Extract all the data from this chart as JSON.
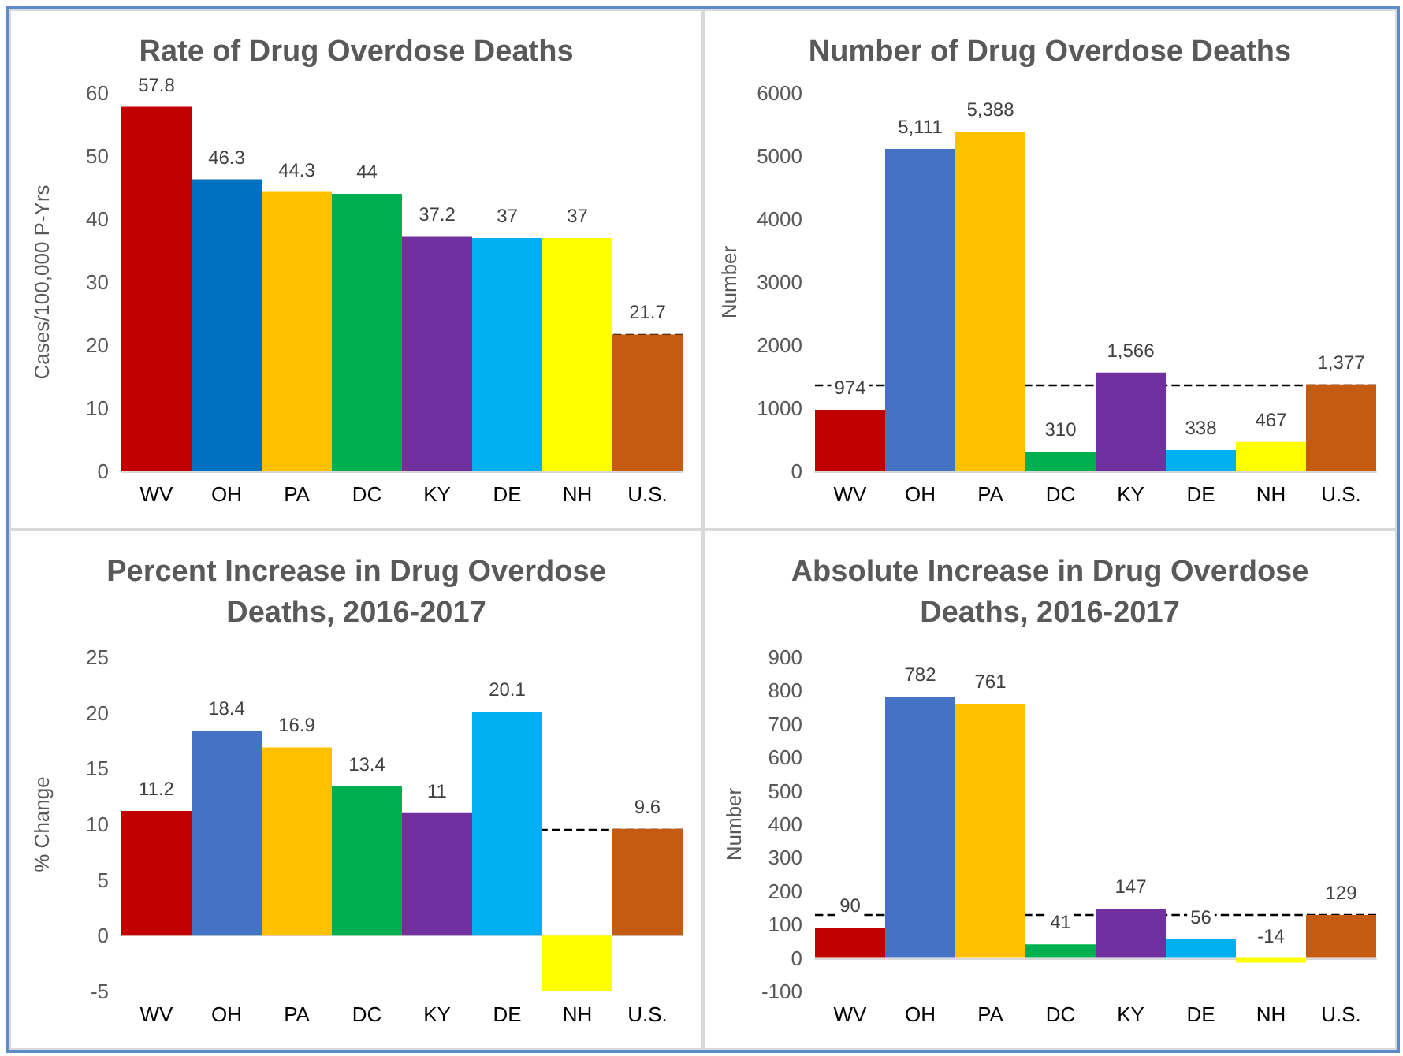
{
  "chart_data": [
    {
      "type": "bar",
      "title": "Rate of Drug Overdose Deaths",
      "ylabel": "Cases/100,000 P-Yrs",
      "categories": [
        "WV",
        "OH",
        "PA",
        "DC",
        "KY",
        "DE",
        "NH",
        "U.S."
      ],
      "values": [
        57.8,
        46.3,
        44.3,
        44,
        37.2,
        37,
        37,
        21.7
      ],
      "colors": [
        "#c00000",
        "#0070c0",
        "#ffc000",
        "#00b050",
        "#7030a0",
        "#00b0f0",
        "#ffff00",
        "#c55a11"
      ],
      "value_labels": [
        "57.8",
        "46.3",
        "44.3",
        "44",
        "37.2",
        "37",
        "37",
        "21.7"
      ],
      "ylim": [
        0,
        60
      ],
      "yticks": [
        0,
        10,
        20,
        30,
        40,
        50,
        60
      ],
      "grid": false,
      "ref_lines": [
        {
          "axis": "y",
          "value": 21.7,
          "color": "#000000",
          "line_style": "dashed"
        }
      ]
    },
    {
      "type": "bar",
      "title": "Number of Drug Overdose Deaths",
      "ylabel": "Number",
      "categories": [
        "WV",
        "OH",
        "PA",
        "DC",
        "KY",
        "DE",
        "NH",
        "U.S."
      ],
      "values": [
        974,
        5111,
        5388,
        310,
        1566,
        338,
        467,
        1377
      ],
      "colors": [
        "#c00000",
        "#4472c4",
        "#ffc000",
        "#00b050",
        "#7030a0",
        "#00b0f0",
        "#ffff00",
        "#c55a11"
      ],
      "value_labels": [
        "974",
        "5,111",
        "5,388",
        "310",
        "1,566",
        "338",
        "467",
        "1,377"
      ],
      "ylim": [
        0,
        6000
      ],
      "yticks": [
        0,
        1000,
        2000,
        3000,
        4000,
        5000,
        6000
      ],
      "grid": false,
      "ref_lines": [
        {
          "axis": "y",
          "value": 1377,
          "color": "#000000",
          "line_style": "dashed"
        }
      ]
    },
    {
      "type": "bar",
      "title": "Percent Increase in Drug Overdose Deaths, 2016-2017",
      "ylabel": "% Change",
      "categories": [
        "WV",
        "OH",
        "PA",
        "DC",
        "KY",
        "DE",
        "NH",
        "U.S."
      ],
      "values": [
        11.2,
        18.4,
        16.9,
        13.4,
        11,
        20.1,
        -5,
        9.6
      ],
      "colors": [
        "#c00000",
        "#4472c4",
        "#ffc000",
        "#00b050",
        "#7030a0",
        "#00b0f0",
        "#ffff00",
        "#c55a11"
      ],
      "value_labels": [
        "11.2",
        "18.4",
        "16.9",
        "13.4",
        "11",
        "20.1",
        null,
        "9.6"
      ],
      "ylim": [
        -5,
        25
      ],
      "yticks": [
        -5,
        0,
        5,
        10,
        15,
        20,
        25
      ],
      "grid": false,
      "ref_lines": [
        {
          "axis": "y",
          "value": 9.6,
          "color": "#000000",
          "line_style": "dashed"
        }
      ]
    },
    {
      "type": "bar",
      "title": "Absolute Increase in Drug Overdose Deaths, 2016-2017",
      "ylabel": "Number",
      "categories": [
        "WV",
        "OH",
        "PA",
        "DC",
        "KY",
        "DE",
        "NH",
        "U.S."
      ],
      "values": [
        90,
        782,
        761,
        41,
        147,
        56,
        -14,
        129
      ],
      "colors": [
        "#c00000",
        "#4472c4",
        "#ffc000",
        "#00b050",
        "#7030a0",
        "#00b0f0",
        "#ffff00",
        "#c55a11"
      ],
      "value_labels": [
        "90",
        "782",
        "761",
        "41",
        "147",
        "56",
        "-14",
        "129"
      ],
      "ylim": [
        -100,
        900
      ],
      "yticks": [
        -100,
        0,
        100,
        200,
        300,
        400,
        500,
        600,
        700,
        800,
        900
      ],
      "grid": false,
      "ref_lines": [
        {
          "axis": "y",
          "value": 129,
          "color": "#000000",
          "line_style": "dashed"
        }
      ]
    }
  ]
}
